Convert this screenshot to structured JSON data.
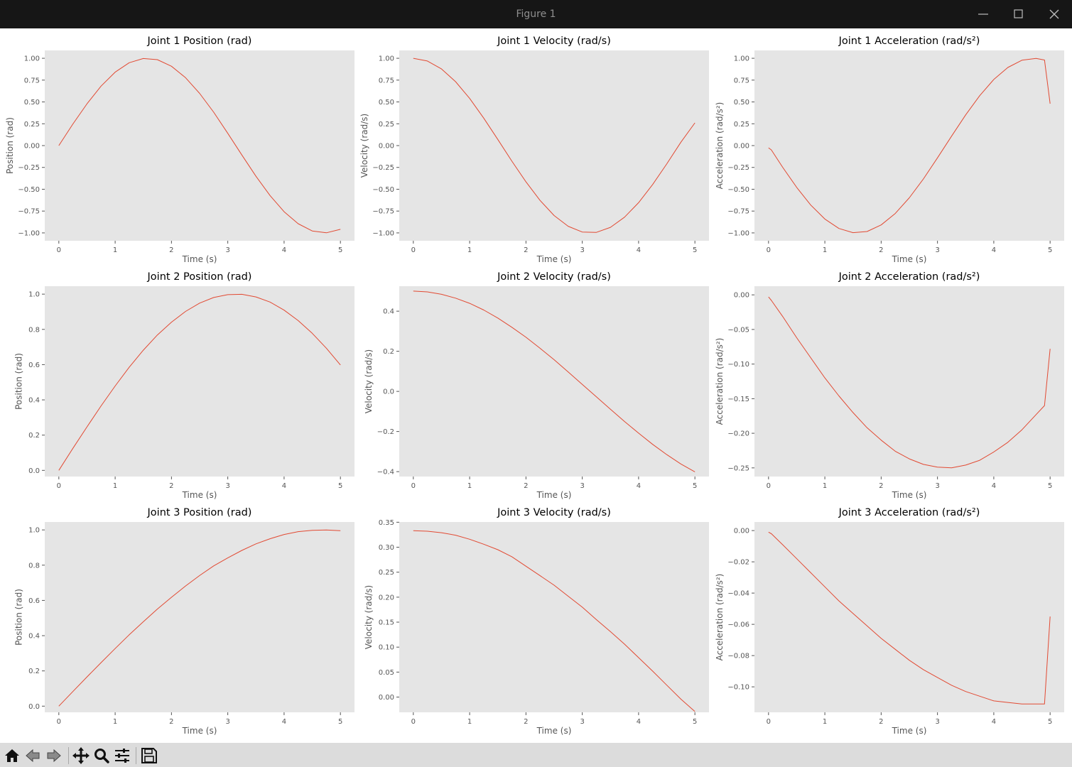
{
  "window": {
    "title": "Figure 1",
    "minimize_icon": "minimize-icon",
    "maximize_icon": "maximize-icon",
    "close_icon": "close-icon"
  },
  "toolbar": {
    "buttons": [
      {
        "name": "home-button",
        "icon": "home-icon"
      },
      {
        "name": "back-button",
        "icon": "back-arrow-icon"
      },
      {
        "name": "forward-button",
        "icon": "forward-arrow-icon"
      },
      {
        "name": "pan-button",
        "icon": "move-icon"
      },
      {
        "name": "zoom-button",
        "icon": "magnifier-icon"
      },
      {
        "name": "configure-subplots-button",
        "icon": "sliders-icon"
      },
      {
        "name": "save-button",
        "icon": "floppy-disk-icon"
      }
    ]
  },
  "style": {
    "axes_background": "#e5e5e5",
    "line_color": "#e24a33",
    "tick_color": "#555555",
    "title_color": "#000000",
    "titlebar_background": "#161616"
  },
  "chart_data": [
    {
      "type": "line",
      "title": "Joint 1 Position (rad)",
      "xlabel": "Time (s)",
      "ylabel": "Position (rad)",
      "grid": false,
      "xlim": [
        -0.25,
        5.25
      ],
      "ylim": [
        -1.09,
        1.09
      ],
      "xticks": [
        0,
        1,
        2,
        3,
        4,
        5
      ],
      "xtick_labels": [
        "0",
        "1",
        "2",
        "3",
        "4",
        "5"
      ],
      "yticks": [
        1.0,
        0.75,
        0.5,
        0.25,
        0.0,
        -0.25,
        -0.5,
        -0.75,
        -1.0
      ],
      "ytick_labels": [
        "1.00",
        "0.75",
        "0.50",
        "0.25",
        "0.00",
        "−0.25",
        "−0.50",
        "−0.75",
        "−1.00"
      ],
      "x": [
        0,
        0.25,
        0.5,
        0.75,
        1,
        1.25,
        1.5,
        1.75,
        2,
        2.25,
        2.5,
        2.75,
        3,
        3.25,
        3.5,
        3.75,
        4,
        4.25,
        4.5,
        4.75,
        5
      ],
      "y": [
        0,
        0.247,
        0.479,
        0.682,
        0.841,
        0.949,
        0.997,
        0.984,
        0.909,
        0.778,
        0.598,
        0.382,
        0.141,
        -0.108,
        -0.351,
        -0.572,
        -0.757,
        -0.895,
        -0.978,
        -0.999,
        -0.959
      ]
    },
    {
      "type": "line",
      "title": "Joint 1 Velocity (rad/s)",
      "xlabel": "Time (s)",
      "ylabel": "Velocity (rad/s)",
      "grid": false,
      "xlim": [
        -0.25,
        5.25
      ],
      "ylim": [
        -1.09,
        1.09
      ],
      "xticks": [
        0,
        1,
        2,
        3,
        4,
        5
      ],
      "xtick_labels": [
        "0",
        "1",
        "2",
        "3",
        "4",
        "5"
      ],
      "yticks": [
        1.0,
        0.75,
        0.5,
        0.25,
        0.0,
        -0.25,
        -0.5,
        -0.75,
        -1.0
      ],
      "ytick_labels": [
        "1.00",
        "0.75",
        "0.50",
        "0.25",
        "0.00",
        "−0.25",
        "−0.50",
        "−0.75",
        "−1.00"
      ],
      "x": [
        0,
        0.25,
        0.5,
        0.75,
        1,
        1.25,
        1.5,
        1.75,
        2,
        2.25,
        2.5,
        2.75,
        3,
        3.25,
        3.5,
        3.75,
        4,
        4.25,
        4.5,
        4.75,
        5
      ],
      "y": [
        1.0,
        0.969,
        0.878,
        0.732,
        0.54,
        0.315,
        0.071,
        -0.178,
        -0.416,
        -0.628,
        -0.801,
        -0.924,
        -0.99,
        -0.994,
        -0.936,
        -0.82,
        -0.654,
        -0.446,
        -0.211,
        0.038,
        0.26
      ]
    },
    {
      "type": "line",
      "title": "Joint 1 Acceleration (rad/s²)",
      "xlabel": "Time (s)",
      "ylabel": "Acceleration (rad/s²)",
      "grid": false,
      "xlim": [
        -0.25,
        5.25
      ],
      "ylim": [
        -1.09,
        1.09
      ],
      "xticks": [
        0,
        1,
        2,
        3,
        4,
        5
      ],
      "xtick_labels": [
        "0",
        "1",
        "2",
        "3",
        "4",
        "5"
      ],
      "yticks": [
        1.0,
        0.75,
        0.5,
        0.25,
        0.0,
        -0.25,
        -0.5,
        -0.75,
        -1.0
      ],
      "ytick_labels": [
        "1.00",
        "0.75",
        "0.50",
        "0.25",
        "0.00",
        "−0.25",
        "−0.50",
        "−0.75",
        "−1.00"
      ],
      "x": [
        0,
        0.05,
        0.25,
        0.5,
        0.75,
        1,
        1.25,
        1.5,
        1.75,
        2,
        2.25,
        2.5,
        2.75,
        3,
        3.25,
        3.5,
        3.75,
        4,
        4.25,
        4.5,
        4.75,
        4.9,
        5
      ],
      "y": [
        -0.025,
        -0.05,
        -0.247,
        -0.479,
        -0.682,
        -0.841,
        -0.949,
        -0.997,
        -0.984,
        -0.909,
        -0.778,
        -0.598,
        -0.382,
        -0.141,
        0.108,
        0.351,
        0.572,
        0.757,
        0.895,
        0.978,
        0.999,
        0.98,
        0.48
      ]
    },
    {
      "type": "line",
      "title": "Joint 2 Position (rad)",
      "xlabel": "Time (s)",
      "ylabel": "Position (rad)",
      "grid": false,
      "xlim": [
        -0.25,
        5.25
      ],
      "ylim": [
        -0.035,
        1.045
      ],
      "xticks": [
        0,
        1,
        2,
        3,
        4,
        5
      ],
      "xtick_labels": [
        "0",
        "1",
        "2",
        "3",
        "4",
        "5"
      ],
      "yticks": [
        1.0,
        0.8,
        0.6,
        0.4,
        0.2,
        0.0
      ],
      "ytick_labels": [
        "1.0",
        "0.8",
        "0.6",
        "0.4",
        "0.2",
        "0.0"
      ],
      "x": [
        0,
        0.25,
        0.5,
        0.75,
        1,
        1.25,
        1.5,
        1.75,
        2,
        2.25,
        2.5,
        2.75,
        3,
        3.25,
        3.5,
        3.75,
        4,
        4.25,
        4.5,
        4.75,
        5
      ],
      "y": [
        0,
        0.125,
        0.247,
        0.366,
        0.479,
        0.585,
        0.682,
        0.768,
        0.841,
        0.902,
        0.949,
        0.981,
        0.997,
        0.999,
        0.984,
        0.955,
        0.909,
        0.85,
        0.778,
        0.693,
        0.598
      ]
    },
    {
      "type": "line",
      "title": "Joint 2 Velocity (rad/s)",
      "xlabel": "Time (s)",
      "ylabel": "Velocity (rad/s)",
      "grid": false,
      "xlim": [
        -0.25,
        5.25
      ],
      "ylim": [
        -0.4245,
        0.5245
      ],
      "xticks": [
        0,
        1,
        2,
        3,
        4,
        5
      ],
      "xtick_labels": [
        "0",
        "1",
        "2",
        "3",
        "4",
        "5"
      ],
      "yticks": [
        0.4,
        0.2,
        0.0,
        -0.2,
        -0.4
      ],
      "ytick_labels": [
        "0.4",
        "0.2",
        "0.0",
        "−0.2",
        "−0.4"
      ],
      "x": [
        0,
        0.25,
        0.5,
        0.75,
        1,
        1.25,
        1.5,
        1.75,
        2,
        2.25,
        2.5,
        2.75,
        3,
        3.25,
        3.5,
        3.75,
        4,
        4.25,
        4.5,
        4.75,
        5
      ],
      "y": [
        0.5,
        0.496,
        0.484,
        0.465,
        0.439,
        0.406,
        0.366,
        0.32,
        0.27,
        0.215,
        0.158,
        0.097,
        0.035,
        -0.027,
        -0.089,
        -0.15,
        -0.208,
        -0.264,
        -0.315,
        -0.362,
        -0.401
      ]
    },
    {
      "type": "line",
      "title": "Joint 2 Acceleration (rad/s²)",
      "xlabel": "Time (s)",
      "ylabel": "Acceleration (rad/s²)",
      "grid": false,
      "xlim": [
        -0.25,
        5.25
      ],
      "ylim": [
        -0.2625,
        0.0125
      ],
      "xticks": [
        0,
        1,
        2,
        3,
        4,
        5
      ],
      "xtick_labels": [
        "0",
        "1",
        "2",
        "3",
        "4",
        "5"
      ],
      "yticks": [
        0.0,
        -0.05,
        -0.1,
        -0.15,
        -0.2,
        -0.25
      ],
      "ytick_labels": [
        "0.00",
        "−0.05",
        "−0.10",
        "−0.15",
        "−0.20",
        "−0.25"
      ],
      "x": [
        0,
        0.05,
        0.25,
        0.5,
        0.75,
        1,
        1.25,
        1.5,
        1.75,
        2,
        2.25,
        2.5,
        2.75,
        3,
        3.25,
        3.5,
        3.75,
        4,
        4.25,
        4.5,
        4.75,
        4.9,
        5
      ],
      "y": [
        -0.003,
        -0.008,
        -0.031,
        -0.062,
        -0.091,
        -0.12,
        -0.146,
        -0.17,
        -0.192,
        -0.21,
        -0.226,
        -0.237,
        -0.245,
        -0.249,
        -0.25,
        -0.246,
        -0.239,
        -0.227,
        -0.213,
        -0.195,
        -0.173,
        -0.16,
        -0.078
      ]
    },
    {
      "type": "line",
      "title": "Joint 3 Position (rad)",
      "xlabel": "Time (s)",
      "ylabel": "Position (rad)",
      "grid": false,
      "xlim": [
        -0.25,
        5.25
      ],
      "ylim": [
        -0.035,
        1.045
      ],
      "xticks": [
        0,
        1,
        2,
        3,
        4,
        5
      ],
      "xtick_labels": [
        "0",
        "1",
        "2",
        "3",
        "4",
        "5"
      ],
      "yticks": [
        1.0,
        0.8,
        0.6,
        0.4,
        0.2,
        0.0
      ],
      "ytick_labels": [
        "1.0",
        "0.8",
        "0.6",
        "0.4",
        "0.2",
        "0.0"
      ],
      "x": [
        0,
        0.25,
        0.5,
        0.75,
        1,
        1.25,
        1.5,
        1.75,
        2,
        2.25,
        2.5,
        2.75,
        3,
        3.25,
        3.5,
        3.75,
        4,
        4.25,
        4.5,
        4.75,
        5
      ],
      "y": [
        0,
        0.083,
        0.166,
        0.247,
        0.327,
        0.405,
        0.479,
        0.551,
        0.618,
        0.682,
        0.741,
        0.796,
        0.841,
        0.884,
        0.921,
        0.95,
        0.974,
        0.99,
        0.998,
        1.0,
        0.996
      ]
    },
    {
      "type": "line",
      "title": "Joint 3 Velocity (rad/s)",
      "xlabel": "Time (s)",
      "ylabel": "Velocity (rad/s)",
      "grid": false,
      "xlim": [
        -0.25,
        5.25
      ],
      "ylim": [
        -0.0305,
        0.3505
      ],
      "xticks": [
        0,
        1,
        2,
        3,
        4,
        5
      ],
      "xtick_labels": [
        "0",
        "1",
        "2",
        "3",
        "4",
        "5"
      ],
      "yticks": [
        0.35,
        0.3,
        0.25,
        0.2,
        0.15,
        0.1,
        0.05,
        0.0
      ],
      "ytick_labels": [
        "0.35",
        "0.30",
        "0.25",
        "0.20",
        "0.15",
        "0.10",
        "0.05",
        "0.00"
      ],
      "x": [
        0,
        0.25,
        0.5,
        0.75,
        1,
        1.25,
        1.5,
        1.75,
        2,
        2.25,
        2.5,
        2.75,
        3,
        3.25,
        3.5,
        3.75,
        4,
        4.25,
        4.5,
        4.75,
        5
      ],
      "y": [
        0.333,
        0.332,
        0.329,
        0.324,
        0.316,
        0.306,
        0.295,
        0.281,
        0.262,
        0.243,
        0.224,
        0.202,
        0.18,
        0.155,
        0.131,
        0.106,
        0.079,
        0.052,
        0.024,
        -0.004,
        -0.029
      ]
    },
    {
      "type": "line",
      "title": "Joint 3 Acceleration (rad/s²)",
      "xlabel": "Time (s)",
      "ylabel": "Acceleration (rad/s²)",
      "grid": false,
      "xlim": [
        -0.25,
        5.25
      ],
      "ylim": [
        -0.1163,
        0.0055
      ],
      "xticks": [
        0,
        1,
        2,
        3,
        4,
        5
      ],
      "xtick_labels": [
        "0",
        "1",
        "2",
        "3",
        "4",
        "5"
      ],
      "yticks": [
        0.0,
        -0.02,
        -0.04,
        -0.06,
        -0.08,
        -0.1
      ],
      "ytick_labels": [
        "0.00",
        "−0.02",
        "−0.04",
        "−0.06",
        "−0.08",
        "−0.10"
      ],
      "x": [
        0,
        0.05,
        0.25,
        0.5,
        0.75,
        1,
        1.25,
        1.5,
        1.75,
        2,
        2.25,
        2.5,
        2.75,
        3,
        3.25,
        3.5,
        3.75,
        4,
        4.25,
        4.5,
        4.75,
        4.9,
        5
      ],
      "y": [
        -0.001,
        -0.002,
        -0.009,
        -0.018,
        -0.027,
        -0.036,
        -0.045,
        -0.053,
        -0.061,
        -0.069,
        -0.076,
        -0.083,
        -0.089,
        -0.094,
        -0.099,
        -0.103,
        -0.106,
        -0.109,
        -0.11,
        -0.111,
        -0.111,
        -0.111,
        -0.055
      ]
    }
  ]
}
